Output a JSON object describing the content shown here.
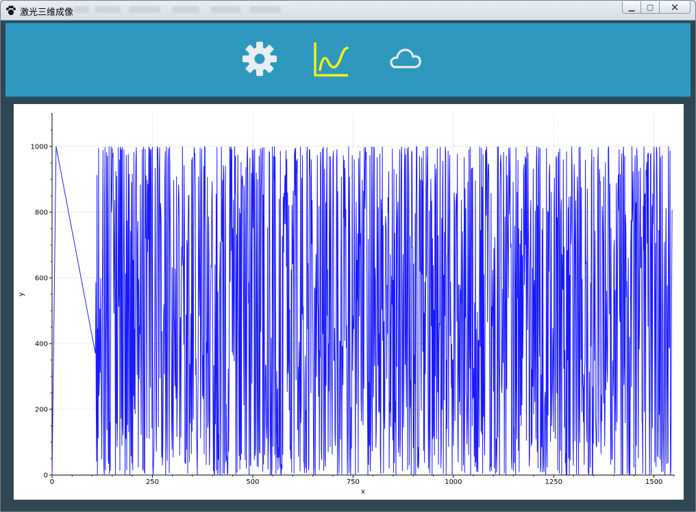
{
  "window": {
    "title": "激光三维成像",
    "controls": {
      "minimize": "▁",
      "maximize": "▢",
      "close": "✕"
    }
  },
  "toolbar": {
    "items": [
      {
        "icon": "gear-icon",
        "color": "#e8eef2"
      },
      {
        "icon": "line-chart-icon",
        "color": "#f3f315",
        "active": true
      },
      {
        "icon": "cloud-icon",
        "color": "#e8eef2"
      }
    ]
  },
  "chart_data": {
    "type": "line",
    "xlabel": "x",
    "ylabel": "y",
    "xlim": [
      0,
      1550
    ],
    "ylim": [
      0,
      1100
    ],
    "xticks": [
      "0",
      "250",
      "500",
      "750",
      "1000",
      "1250",
      "1500"
    ],
    "yticks": [
      "0",
      "200",
      "400",
      "600",
      "800",
      "1000"
    ],
    "grid": true,
    "line_color": "#1a1aff",
    "series": [
      {
        "x_start": 108,
        "x_end": 1545,
        "n_points": 1438,
        "value_min": 0,
        "value_max": 1000,
        "leading_points": [
          [
            0,
            0
          ],
          [
            10,
            1000
          ],
          [
            108,
            370
          ]
        ]
      }
    ]
  }
}
